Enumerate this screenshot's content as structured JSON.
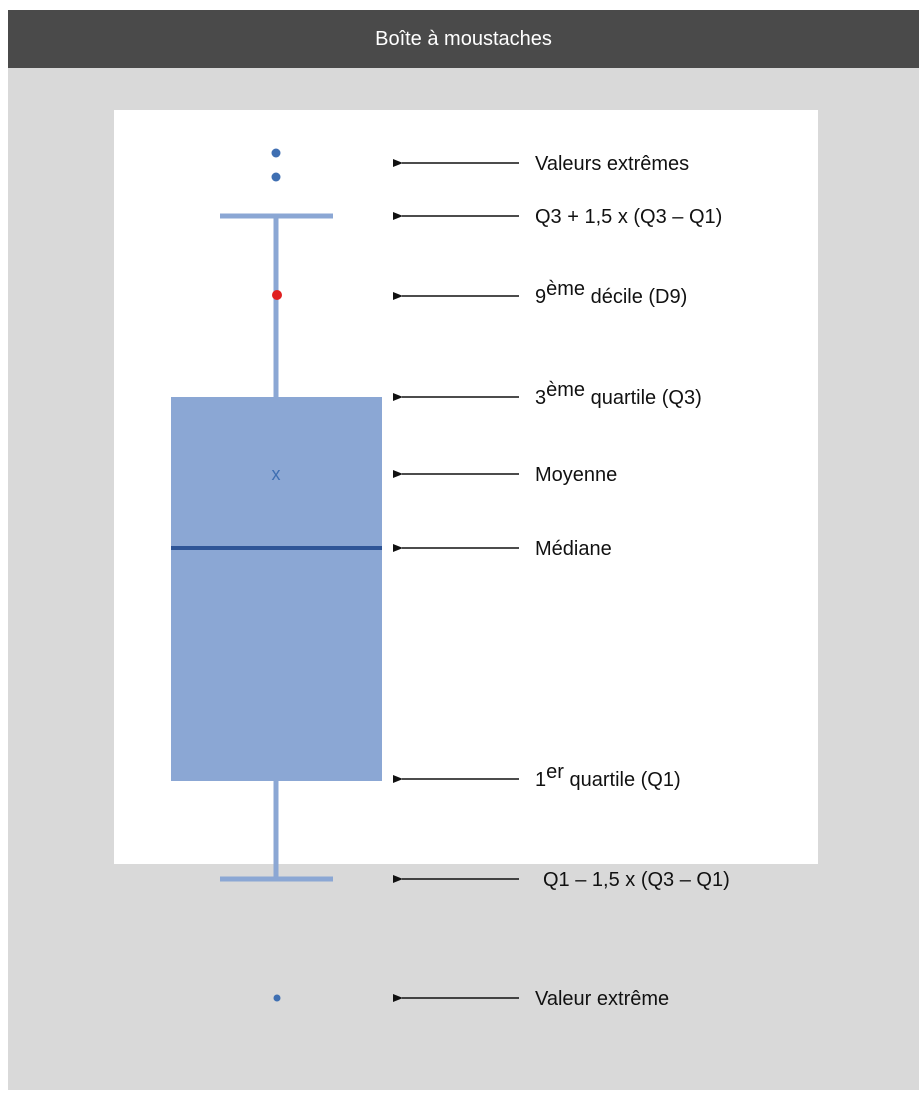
{
  "title": "Boîte à moustaches",
  "mean_marker": "x",
  "colors": {
    "header_bg": "#4a4a4a",
    "frame_bg": "#d9d9d9",
    "box_fill": "#8ba7d4",
    "whisker": "#8ba7d4",
    "median_line": "#2e5597",
    "outlier_point": "#3f6fb2",
    "decile_point": "#e02020"
  },
  "labels": {
    "outliers_high": "Valeurs extrêmes",
    "upper_fence": "Q3 + 1,5 x (Q3 – Q1)",
    "d9": {
      "num": "9",
      "sup": "ème",
      "text": " décile (D9)"
    },
    "q3": {
      "num": "3",
      "sup": "ème",
      "text": " quartile (Q3)"
    },
    "mean": "Moyenne",
    "median": "Médiane",
    "q1": {
      "num": "1",
      "sup": "er",
      "text": " quartile (Q1)"
    },
    "lower_fence": "Q1 – 1,5 x (Q3 – Q1)",
    "outlier_low": "Valeur extrême"
  }
}
